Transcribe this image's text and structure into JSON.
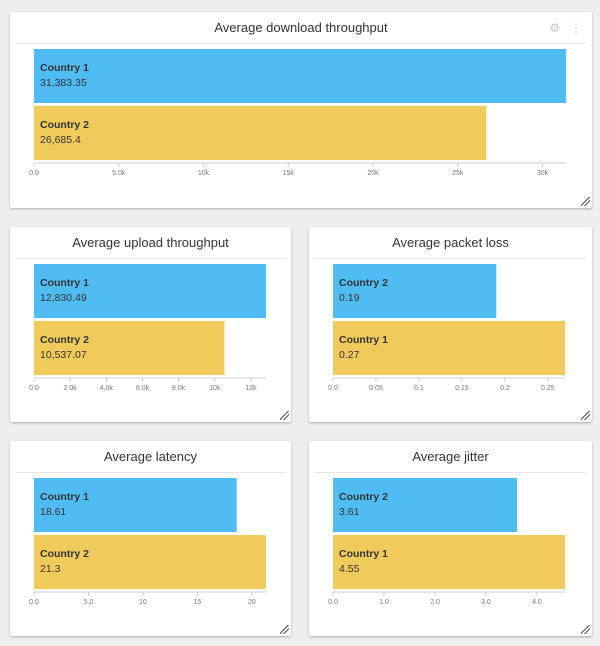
{
  "colors": {
    "series_a": "#4fbdf3",
    "series_b": "#f0cb5b",
    "axis": "#cccccc"
  },
  "widgets": {
    "download": {
      "title": "Average download throughput",
      "icons": [
        "gear-icon",
        "more-vertical-icon"
      ]
    },
    "upload": {
      "title": "Average upload throughput"
    },
    "loss": {
      "title": "Average packet loss"
    },
    "latency": {
      "title": "Average latency"
    },
    "jitter": {
      "title": "Average jitter"
    }
  },
  "chart_data": [
    {
      "id": "download",
      "type": "bar",
      "orientation": "horizontal",
      "title": "Average download throughput",
      "categories": [
        "Country 1",
        "Country 2"
      ],
      "values": [
        31383.35,
        26685.4
      ],
      "value_labels": [
        "31,383.35",
        "26,685.4"
      ],
      "bar_colors": [
        "#4fbdf3",
        "#f0cb5b"
      ],
      "xlim": [
        0,
        31383.35
      ],
      "ticks": [
        0,
        5000,
        10000,
        15000,
        20000,
        25000,
        30000
      ],
      "tick_labels": [
        "0.0",
        "5.0k",
        "10k",
        "15k",
        "20k",
        "25k",
        "30k"
      ],
      "grid": false
    },
    {
      "id": "upload",
      "type": "bar",
      "orientation": "horizontal",
      "title": "Average upload throughput",
      "categories": [
        "Country 1",
        "Country 2"
      ],
      "values": [
        12830.49,
        10537.07
      ],
      "value_labels": [
        "12,830.49",
        "10,537.07"
      ],
      "bar_colors": [
        "#4fbdf3",
        "#f0cb5b"
      ],
      "xlim": [
        0,
        12830.49
      ],
      "ticks": [
        0,
        2000,
        4000,
        6000,
        8000,
        10000,
        12000
      ],
      "tick_labels": [
        "0.0",
        "2.0k",
        "4.0k",
        "6.0k",
        "8.0k",
        "10k",
        "12k"
      ],
      "grid": false
    },
    {
      "id": "loss",
      "type": "bar",
      "orientation": "horizontal",
      "title": "Average packet loss",
      "categories": [
        "Country 2",
        "Country 1"
      ],
      "values": [
        0.19,
        0.27
      ],
      "value_labels": [
        "0.19",
        "0.27"
      ],
      "bar_colors": [
        "#4fbdf3",
        "#f0cb5b"
      ],
      "xlim": [
        0,
        0.27
      ],
      "ticks": [
        0,
        0.05,
        0.1,
        0.15,
        0.2,
        0.25
      ],
      "tick_labels": [
        "0.0",
        "0.05",
        "0.1",
        "0.15",
        "0.2",
        "0.25"
      ],
      "grid": false
    },
    {
      "id": "latency",
      "type": "bar",
      "orientation": "horizontal",
      "title": "Average latency",
      "categories": [
        "Country 1",
        "Country 2"
      ],
      "values": [
        18.61,
        21.3
      ],
      "value_labels": [
        "18.61",
        "21.3"
      ],
      "bar_colors": [
        "#4fbdf3",
        "#f0cb5b"
      ],
      "xlim": [
        0,
        21.3
      ],
      "ticks": [
        0,
        5,
        10,
        15,
        20
      ],
      "tick_labels": [
        "0.0",
        "5.0",
        "10",
        "15",
        "20"
      ],
      "grid": false
    },
    {
      "id": "jitter",
      "type": "bar",
      "orientation": "horizontal",
      "title": "Average jitter",
      "categories": [
        "Country 2",
        "Country 1"
      ],
      "values": [
        3.61,
        4.55
      ],
      "value_labels": [
        "3.61",
        "4.55"
      ],
      "bar_colors": [
        "#4fbdf3",
        "#f0cb5b"
      ],
      "xlim": [
        0,
        4.55
      ],
      "ticks": [
        0,
        1,
        2,
        3,
        4
      ],
      "tick_labels": [
        "0.0",
        "1.0",
        "2.0",
        "3.0",
        "4.0"
      ],
      "grid": false
    }
  ]
}
